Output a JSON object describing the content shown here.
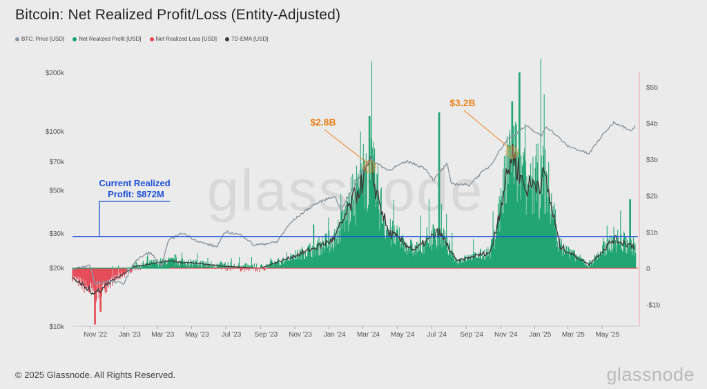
{
  "title": "Bitcoin: Net Realized Profit/Loss (Entity-Adjusted)",
  "legend": [
    {
      "label": "BTC: Price [USD]",
      "color": "#8a96a0"
    },
    {
      "label": "Net Realized Profit [USD]",
      "color": "#12a06a"
    },
    {
      "label": "Net Realized Loss [USD]",
      "color": "#e5414f"
    },
    {
      "label": "7D-EMA [USD]",
      "color": "#3a3a3a"
    }
  ],
  "footer": "© 2025 Glassnode. All Rights Reserved.",
  "brand": "glassnode",
  "watermark": "glassnode",
  "chart_data": {
    "type": "line",
    "title": "Bitcoin: Net Realized Profit/Loss (Entity-Adjusted)",
    "x_ticks": [
      "Nov '22",
      "Jan '23",
      "Mar '23",
      "May '23",
      "Jul '23",
      "Sep '23",
      "Nov '23",
      "Jan '24",
      "Mar '24",
      "May '24",
      "Jul '24",
      "Sep '24",
      "Nov '24",
      "Jan '25",
      "Mar '25",
      "May '25"
    ],
    "left_axis": {
      "scale": "log",
      "ticks": [
        "$200k",
        "$100k",
        "$70k",
        "$50k",
        "$30k",
        "$20k",
        "$10k"
      ],
      "tick_values": [
        200000,
        100000,
        70000,
        50000,
        30000,
        20000,
        10000
      ],
      "range": [
        10000,
        200000
      ]
    },
    "right_axis": {
      "scale": "linear",
      "ticks": [
        "$5b",
        "$4b",
        "$3b",
        "$2b",
        "$1b",
        "0",
        "-$1b"
      ],
      "tick_values": [
        5,
        4,
        3,
        2,
        1,
        0,
        -1
      ],
      "range": [
        -1.6,
        5.4
      ],
      "unit": "billion USD"
    },
    "series": [
      {
        "name": "BTC: Price [USD]",
        "color": "#8a96a0",
        "axis": "left",
        "points": [
          [
            "2022-10-01",
            19500
          ],
          [
            "2022-11-01",
            20500
          ],
          [
            "2022-11-10",
            16500
          ],
          [
            "2022-12-01",
            17000
          ],
          [
            "2023-01-01",
            16600
          ],
          [
            "2023-01-20",
            21500
          ],
          [
            "2023-02-15",
            24000
          ],
          [
            "2023-03-10",
            20000
          ],
          [
            "2023-03-20",
            27500
          ],
          [
            "2023-04-15",
            30000
          ],
          [
            "2023-05-15",
            27000
          ],
          [
            "2023-06-15",
            25500
          ],
          [
            "2023-07-01",
            30500
          ],
          [
            "2023-07-31",
            29200
          ],
          [
            "2023-08-20",
            26000
          ],
          [
            "2023-09-30",
            27000
          ],
          [
            "2023-10-25",
            34000
          ],
          [
            "2023-12-05",
            42000
          ],
          [
            "2024-01-10",
            46500
          ],
          [
            "2024-01-23",
            39500
          ],
          [
            "2024-02-15",
            52000
          ],
          [
            "2024-03-13",
            72000
          ],
          [
            "2024-04-15",
            63000
          ],
          [
            "2024-05-20",
            70000
          ],
          [
            "2024-06-20",
            64500
          ],
          [
            "2024-07-05",
            56000
          ],
          [
            "2024-07-29",
            68000
          ],
          [
            "2024-08-05",
            54000
          ],
          [
            "2024-09-06",
            53000
          ],
          [
            "2024-10-15",
            67000
          ],
          [
            "2024-11-13",
            90000
          ],
          [
            "2024-12-17",
            106000
          ],
          [
            "2025-01-13",
            94000
          ],
          [
            "2025-01-21",
            106000
          ],
          [
            "2025-02-28",
            84000
          ],
          [
            "2025-04-08",
            76500
          ],
          [
            "2025-05-22",
            111000
          ],
          [
            "2025-06-23",
            101000
          ],
          [
            "2025-06-30",
            107000
          ]
        ]
      },
      {
        "name": "Net Realized Profit [USD]",
        "color": "#12a06a",
        "axis": "right",
        "peaks": [
          [
            "2024-03-13",
            4.2
          ],
          [
            "2024-07-15",
            4.3
          ],
          [
            "2024-12-05",
            5.4
          ],
          [
            "2024-11-22",
            4.6
          ],
          [
            "2025-06-20",
            1.9
          ]
        ]
      },
      {
        "name": "Net Realized Loss [USD]",
        "color": "#e5414f",
        "axis": "right",
        "peaks": [
          [
            "2022-11-10",
            -1.55
          ],
          [
            "2022-11-20",
            -1.2
          ]
        ]
      },
      {
        "name": "7D-EMA [USD]",
        "color": "#3a3a3a",
        "axis": "right",
        "points": [
          [
            "2022-10-01",
            -0.25
          ],
          [
            "2022-11-10",
            -0.7
          ],
          [
            "2022-12-15",
            -0.3
          ],
          [
            "2023-01-20",
            0.05
          ],
          [
            "2023-03-20",
            0.2
          ],
          [
            "2023-05-01",
            0.15
          ],
          [
            "2023-07-01",
            0.05
          ],
          [
            "2023-09-01",
            0.0
          ],
          [
            "2023-10-25",
            0.3
          ],
          [
            "2023-12-05",
            0.55
          ],
          [
            "2024-01-10",
            0.8
          ],
          [
            "2024-03-13",
            2.8
          ],
          [
            "2024-04-15",
            1.0
          ],
          [
            "2024-06-01",
            0.5
          ],
          [
            "2024-07-15",
            1.0
          ],
          [
            "2024-08-15",
            0.2
          ],
          [
            "2024-10-15",
            0.45
          ],
          [
            "2024-11-22",
            3.2
          ],
          [
            "2024-12-15",
            2.2
          ],
          [
            "2025-01-20",
            2.5
          ],
          [
            "2025-02-15",
            0.6
          ],
          [
            "2025-04-08",
            0.1
          ],
          [
            "2025-05-22",
            0.8
          ],
          [
            "2025-06-30",
            0.6
          ]
        ]
      }
    ],
    "reference_lines": [
      {
        "value": 0.872,
        "axis": "right",
        "color": "#1c4fd8"
      },
      {
        "value": 0,
        "axis": "right",
        "color": "#e5414f"
      }
    ],
    "annotations": [
      {
        "text": "$2.8B",
        "date": "2024-03-13",
        "value": 2.8,
        "color": "#e8841e"
      },
      {
        "text": "$3.2B",
        "date": "2024-11-22",
        "value": 3.2,
        "color": "#e8841e"
      },
      {
        "text_lines": [
          "Current Realized",
          "Profit: $872M"
        ],
        "color": "#1c4fd8"
      }
    ]
  }
}
